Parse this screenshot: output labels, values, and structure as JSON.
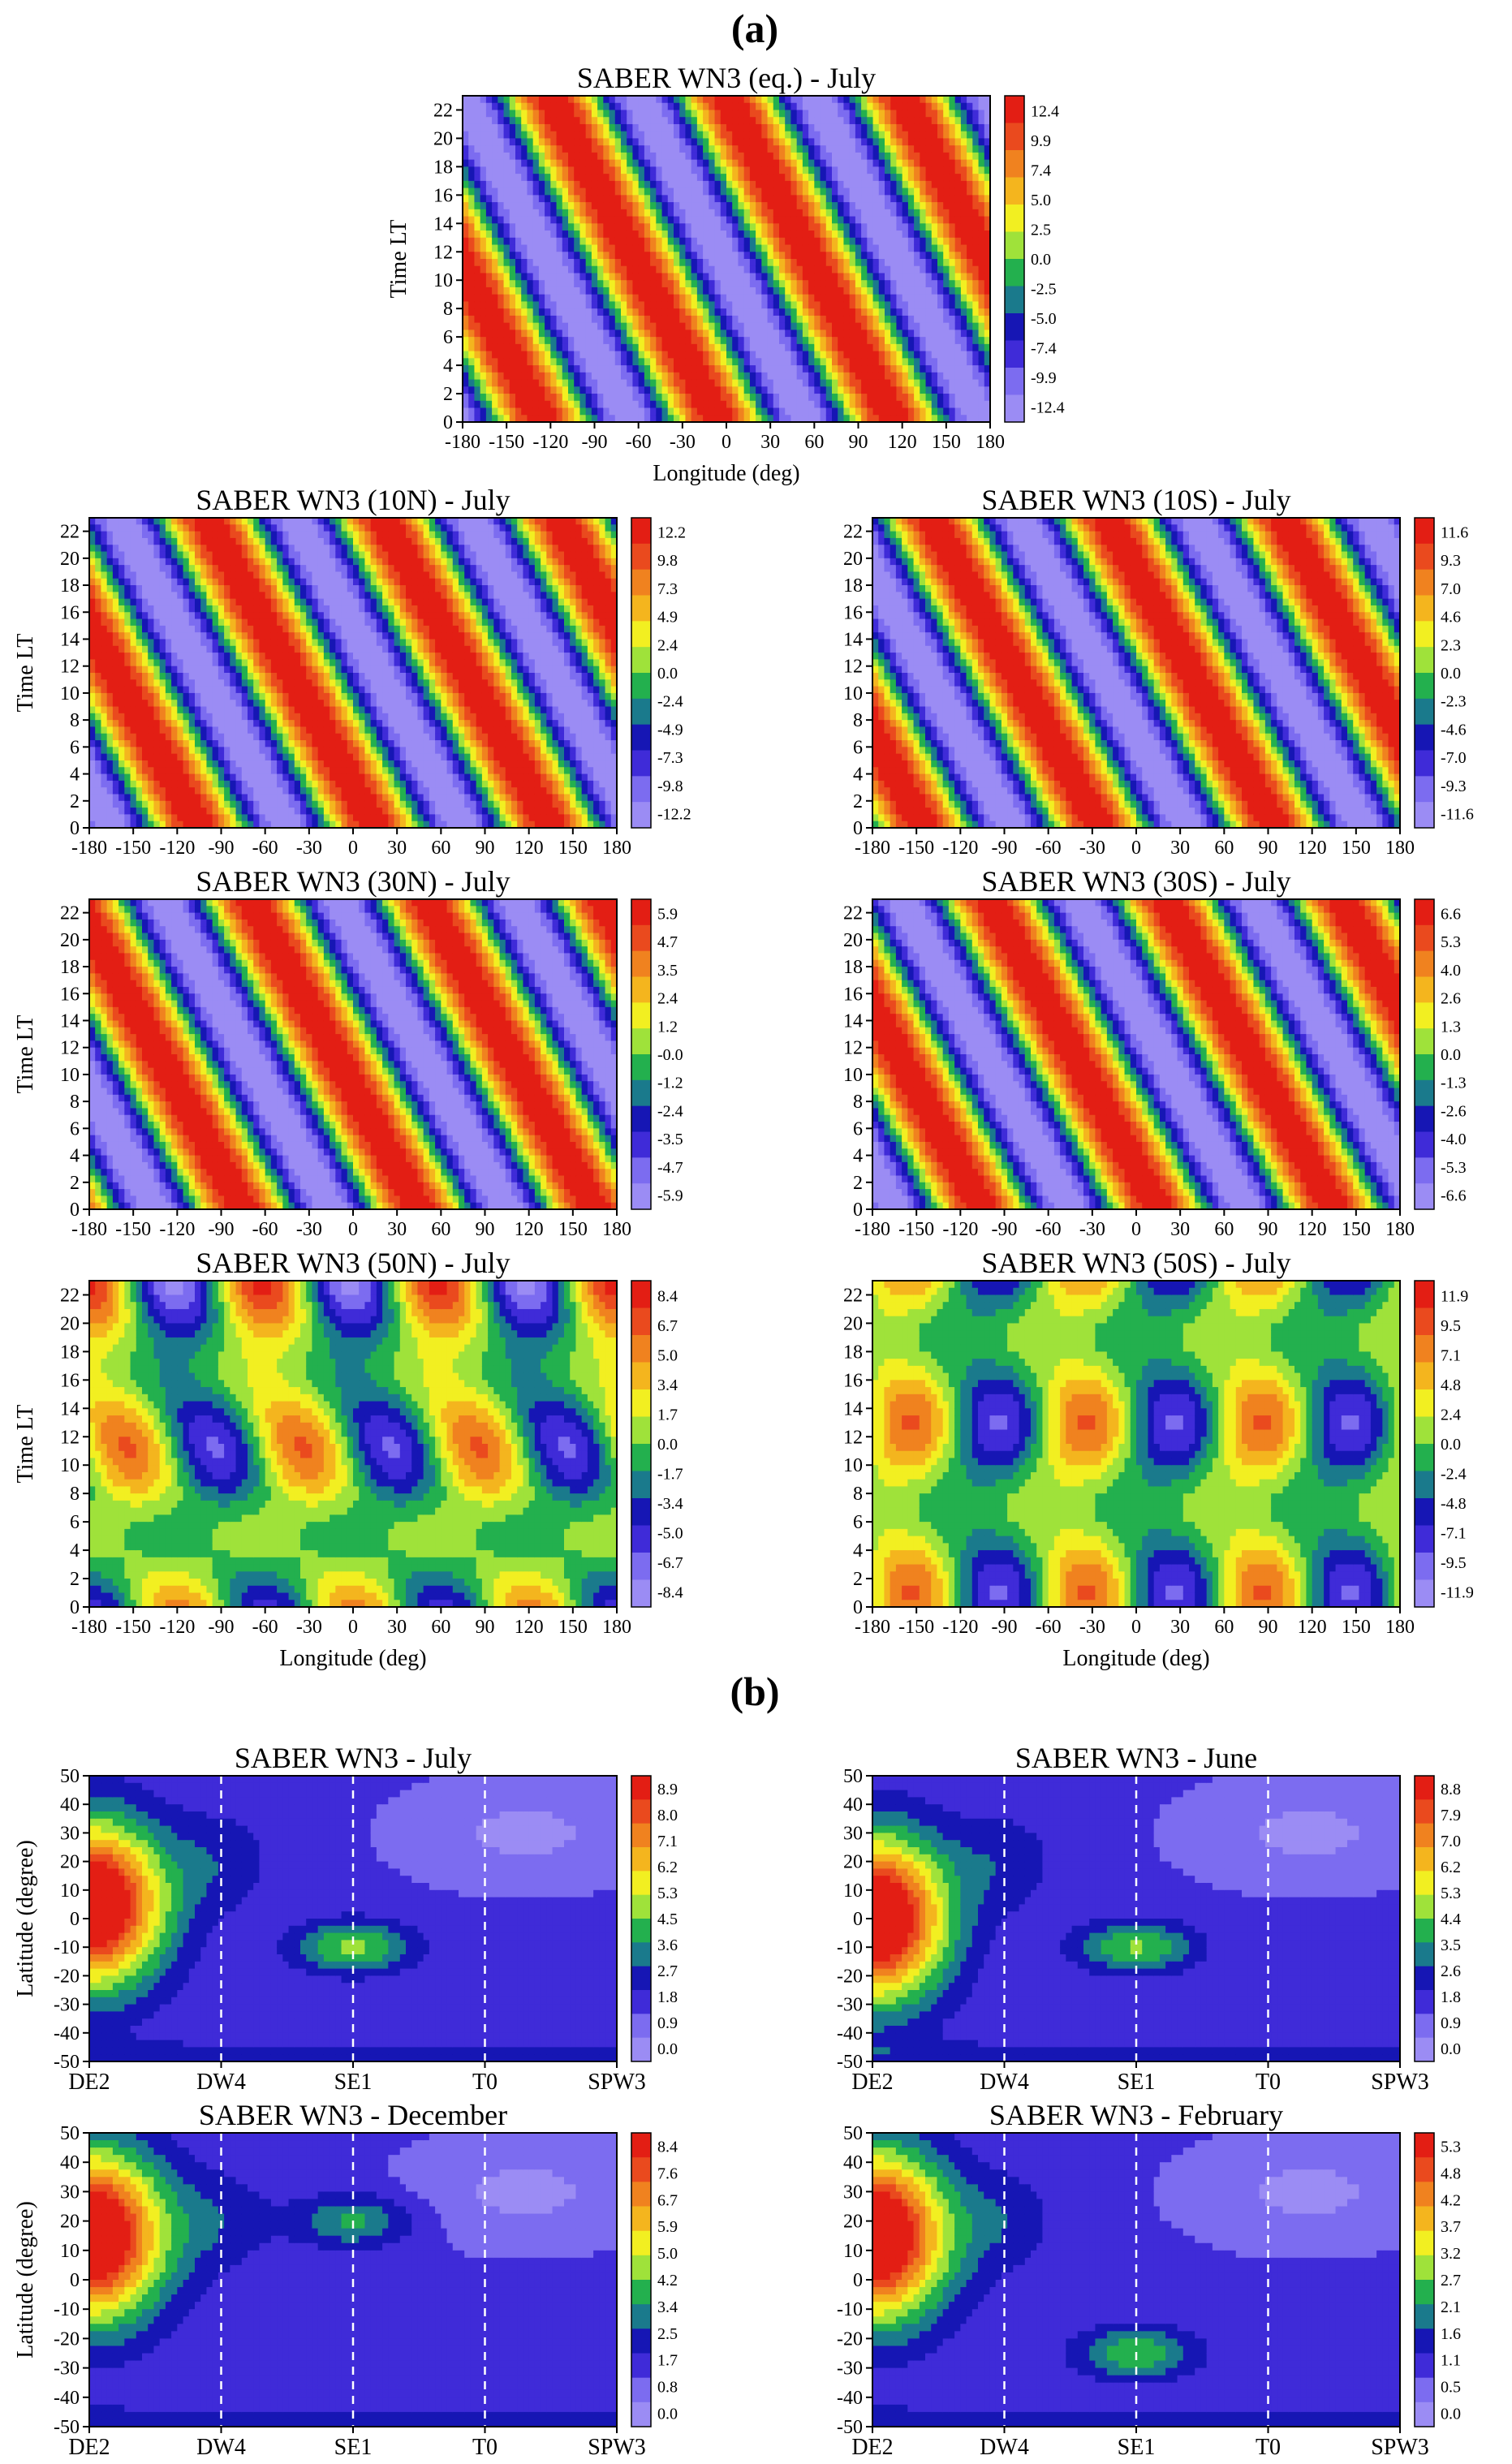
{
  "figure": {
    "section_a_label": "(a)",
    "section_b_label": "(b)"
  },
  "colors": {
    "palette": [
      "#9b8cf4",
      "#7c6cf0",
      "#3f2bd8",
      "#1616b4",
      "#1a7a8c",
      "#23b04e",
      "#9fe23a",
      "#f2ef21",
      "#f4b51e",
      "#f0821f",
      "#ea4a1e",
      "#e31e14"
    ],
    "background_field_b": "#8c82f0",
    "contour_line": "#111111",
    "zero_line": "#ffffff"
  },
  "chart_data": [
    {
      "id": "eq",
      "type": "contour",
      "title": "SABER WN3 (eq.) - July",
      "xlabel": "Longitude (deg)",
      "ylabel": "Time LT",
      "xticks": [
        "-180",
        "-150",
        "-120",
        "-90",
        "-60",
        "-30",
        "0",
        "30",
        "60",
        "90",
        "120",
        "150",
        "180"
      ],
      "yticks": [
        "0",
        "2",
        "4",
        "6",
        "8",
        "10",
        "12",
        "14",
        "16",
        "18",
        "20",
        "22"
      ],
      "xlim": [
        -180,
        180
      ],
      "ylim": [
        0,
        23
      ],
      "colorbar": [
        "12.4",
        "9.9",
        "7.4",
        "5.0",
        "2.5",
        "0.0",
        "-2.5",
        "-5.0",
        "-7.4",
        "-9.9",
        "-12.4"
      ],
      "field": {
        "amp": 12.4,
        "wavenumber": 3,
        "phase_shift_deg_per_hour": 15,
        "max_lon": -170,
        "peak_lt": 9
      }
    },
    {
      "id": "10n",
      "type": "contour",
      "title": "SABER WN3 (10N) - July",
      "xlabel": "",
      "ylabel": "Time LT",
      "xticks": [
        "-180",
        "-150",
        "-120",
        "-90",
        "-60",
        "-30",
        "0",
        "30",
        "60",
        "90",
        "120",
        "150",
        "180"
      ],
      "yticks": [
        "0",
        "2",
        "4",
        "6",
        "8",
        "10",
        "12",
        "14",
        "16",
        "18",
        "20",
        "22"
      ],
      "xlim": [
        -180,
        180
      ],
      "ylim": [
        0,
        23
      ],
      "colorbar": [
        "12.2",
        "9.8",
        "7.3",
        "4.9",
        "2.4",
        "0.0",
        "-2.4",
        "-4.9",
        "-7.3",
        "-9.8",
        "-12.2"
      ],
      "field": {
        "amp": 12.2,
        "wavenumber": 3,
        "phase_shift_deg_per_hour": 15,
        "max_lon": -160,
        "peak_lt": 11
      }
    },
    {
      "id": "10s",
      "type": "contour",
      "title": "SABER WN3 (10S) - July",
      "xlabel": "",
      "ylabel": "",
      "xticks": [
        "-180",
        "-150",
        "-120",
        "-90",
        "-60",
        "-30",
        "0",
        "30",
        "60",
        "90",
        "120",
        "150",
        "180"
      ],
      "yticks": [
        "0",
        "2",
        "4",
        "6",
        "8",
        "10",
        "12",
        "14",
        "16",
        "18",
        "20",
        "22"
      ],
      "xlim": [
        -180,
        180
      ],
      "ylim": [
        0,
        23
      ],
      "colorbar": [
        "11.6",
        "9.3",
        "7.0",
        "4.6",
        "2.3",
        "0.0",
        "-2.3",
        "-4.6",
        "-7.0",
        "-9.3",
        "-11.6"
      ],
      "field": {
        "amp": 11.6,
        "wavenumber": 3,
        "phase_shift_deg_per_hour": 15,
        "max_lon": -60,
        "peak_lt": 7
      }
    },
    {
      "id": "30n",
      "type": "contour",
      "title": "SABER WN3 (30N) - July",
      "xlabel": "",
      "ylabel": "Time LT",
      "xticks": [
        "-180",
        "-150",
        "-120",
        "-90",
        "-60",
        "-30",
        "0",
        "30",
        "60",
        "90",
        "120",
        "150",
        "180"
      ],
      "yticks": [
        "0",
        "2",
        "4",
        "6",
        "8",
        "10",
        "12",
        "14",
        "16",
        "18",
        "20",
        "22"
      ],
      "xlim": [
        -180,
        180
      ],
      "ylim": [
        0,
        23
      ],
      "colorbar": [
        "5.9",
        "4.7",
        "3.5",
        "2.4",
        "1.2",
        "-0.0",
        "-1.2",
        "-2.4",
        "-3.5",
        "-4.7",
        "-5.9"
      ],
      "field": {
        "amp": 5.9,
        "wavenumber": 3,
        "phase_shift_deg_per_hour": 15,
        "max_lon": -140,
        "peak_lt": 13
      }
    },
    {
      "id": "30s",
      "type": "contour",
      "title": "SABER WN3 (30S) - July",
      "xlabel": "",
      "ylabel": "",
      "xticks": [
        "-180",
        "-150",
        "-120",
        "-90",
        "-60",
        "-30",
        "0",
        "30",
        "60",
        "90",
        "120",
        "150",
        "180"
      ],
      "yticks": [
        "0",
        "2",
        "4",
        "6",
        "8",
        "10",
        "12",
        "14",
        "16",
        "18",
        "20",
        "22"
      ],
      "xlim": [
        -180,
        180
      ],
      "ylim": [
        0,
        23
      ],
      "colorbar": [
        "6.6",
        "5.3",
        "4.0",
        "2.6",
        "1.3",
        "0.0",
        "-1.3",
        "-2.6",
        "-4.0",
        "-5.3",
        "-6.6"
      ],
      "field": {
        "amp": 6.6,
        "wavenumber": 3,
        "phase_shift_deg_per_hour": 15,
        "max_lon": -165,
        "peak_lt": 12
      }
    },
    {
      "id": "50n",
      "type": "contour",
      "title": "SABER WN3 (50N) - July",
      "xlabel": "Longitude (deg)",
      "ylabel": "Time LT",
      "xticks": [
        "-180",
        "-150",
        "-120",
        "-90",
        "-60",
        "-30",
        "0",
        "30",
        "60",
        "90",
        "120",
        "150",
        "180"
      ],
      "yticks": [
        "0",
        "2",
        "4",
        "6",
        "8",
        "10",
        "12",
        "14",
        "16",
        "18",
        "20",
        "22"
      ],
      "xlim": [
        -180,
        180
      ],
      "ylim": [
        0,
        23
      ],
      "colorbar": [
        "8.4",
        "6.7",
        "5.0",
        "3.4",
        "1.7",
        "0.0",
        "-1.7",
        "-3.4",
        "-5.0",
        "-6.7",
        "-8.4"
      ],
      "field": {
        "amp": 8.4,
        "wavenumber": 3,
        "phase_shift_deg_per_hour": 8,
        "max_lon": -150,
        "peak_lt": 11,
        "semidiurnal": true
      }
    },
    {
      "id": "50s",
      "type": "contour",
      "title": "SABER WN3 (50S) - July",
      "xlabel": "Longitude (deg)",
      "ylabel": "",
      "xticks": [
        "-180",
        "-150",
        "-120",
        "-90",
        "-60",
        "-30",
        "0",
        "30",
        "60",
        "90",
        "120",
        "150",
        "180"
      ],
      "yticks": [
        "0",
        "2",
        "4",
        "6",
        "8",
        "10",
        "12",
        "14",
        "16",
        "18",
        "20",
        "22"
      ],
      "xlim": [
        -180,
        180
      ],
      "ylim": [
        0,
        23
      ],
      "colorbar": [
        "11.9",
        "9.5",
        "7.1",
        "4.8",
        "2.4",
        "0.0",
        "-2.4",
        "-4.8",
        "-7.1",
        "-9.5",
        "-11.9"
      ],
      "field": {
        "amp": 11.9,
        "wavenumber": 3,
        "phase_shift_deg_per_hour": 0,
        "max_lon": -150,
        "peak_lt": 13,
        "semidiurnal": true
      }
    },
    {
      "id": "july",
      "type": "contour",
      "title": "SABER WN3 - July",
      "xlabel": "",
      "ylabel": "Latitude (degree)",
      "xcategories": [
        "DE2",
        "DW4",
        "SE1",
        "T0",
        "SPW3"
      ],
      "yticks": [
        "-50",
        "-40",
        "-30",
        "-20",
        "-10",
        "0",
        "10",
        "20",
        "30",
        "40",
        "50"
      ],
      "ylim": [
        -50,
        50
      ],
      "colorbar": [
        "8.9",
        "8.0",
        "7.1",
        "6.2",
        "5.3",
        "4.5",
        "3.6",
        "2.7",
        "1.8",
        "0.9",
        "0.0"
      ],
      "field": {
        "de2_amp": 8.9,
        "de2_lat": 5,
        "se1_lat": -10,
        "se1_amp": 3.4
      }
    },
    {
      "id": "june",
      "type": "contour",
      "title": "SABER WN3 - June",
      "xlabel": "",
      "ylabel": "",
      "xcategories": [
        "DE2",
        "DW4",
        "SE1",
        "T0",
        "SPW3"
      ],
      "yticks": [
        "-50",
        "-40",
        "-30",
        "-20",
        "-10",
        "0",
        "10",
        "20",
        "30",
        "40",
        "50"
      ],
      "ylim": [
        -50,
        50
      ],
      "colorbar": [
        "8.8",
        "7.9",
        "7.0",
        "6.2",
        "5.3",
        "4.4",
        "3.5",
        "2.6",
        "1.8",
        "0.9",
        "0.0"
      ],
      "field": {
        "de2_amp": 8.8,
        "de2_lat": 0,
        "se1_lat": -10,
        "se1_amp": 3.2
      }
    },
    {
      "id": "december",
      "type": "contour",
      "title": "SABER WN3 - December",
      "xlabel": "",
      "ylabel": "Latitude (degree)",
      "xcategories": [
        "DE2",
        "DW4",
        "SE1",
        "T0",
        "SPW3"
      ],
      "yticks": [
        "-50",
        "-40",
        "-30",
        "-20",
        "-10",
        "0",
        "10",
        "20",
        "30",
        "40",
        "50"
      ],
      "ylim": [
        -50,
        50
      ],
      "colorbar": [
        "8.4",
        "7.6",
        "6.7",
        "5.9",
        "5.0",
        "4.2",
        "3.4",
        "2.5",
        "1.7",
        "0.8",
        "0.0"
      ],
      "field": {
        "de2_amp": 8.4,
        "de2_lat": 15,
        "se1_lat": 20,
        "se1_amp": 2.4
      }
    },
    {
      "id": "february",
      "type": "contour",
      "title": "SABER WN3 - February",
      "xlabel": "",
      "ylabel": "",
      "xcategories": [
        "DE2",
        "DW4",
        "SE1",
        "T0",
        "SPW3"
      ],
      "yticks": [
        "-50",
        "-40",
        "-30",
        "-20",
        "-10",
        "0",
        "10",
        "20",
        "30",
        "40",
        "50"
      ],
      "ylim": [
        -50,
        50
      ],
      "colorbar": [
        "5.3",
        "4.8",
        "4.2",
        "3.7",
        "3.2",
        "2.7",
        "2.1",
        "1.6",
        "1.1",
        "0.5",
        "0.0"
      ],
      "field": {
        "de2_amp": 5.3,
        "de2_lat": 15,
        "se1_lat": -25,
        "se1_amp": 1.8
      }
    }
  ]
}
